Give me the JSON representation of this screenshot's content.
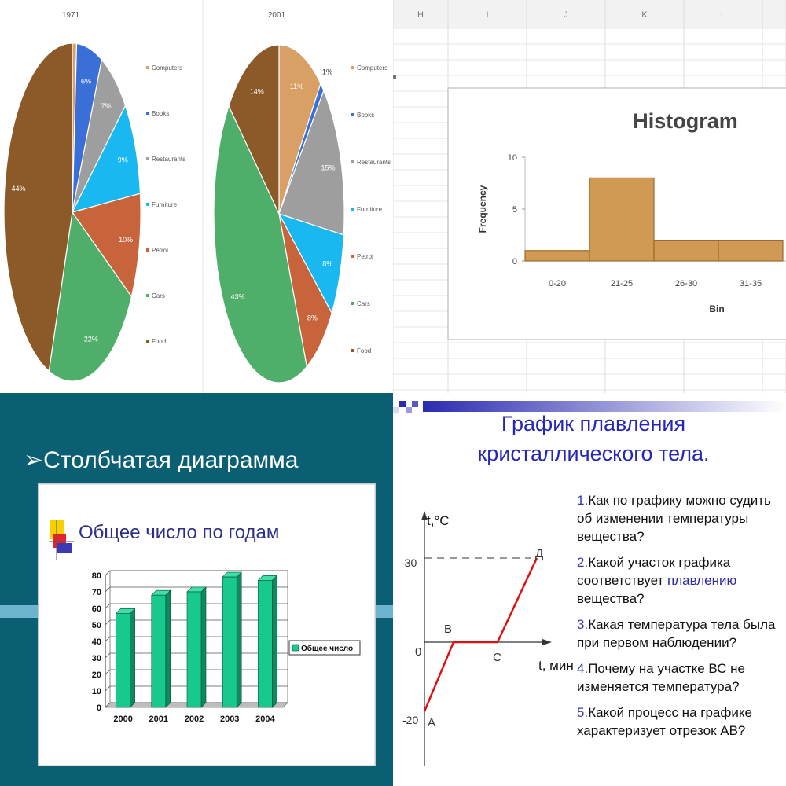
{
  "chart_data": [
    {
      "type": "pie",
      "title": "1971",
      "categories": [
        "Computers",
        "Books",
        "Restaurants",
        "Furniture",
        "Petrol",
        "Cars",
        "Food"
      ],
      "values": [
        1,
        6,
        7,
        9,
        10,
        22,
        44
      ],
      "labels": [
        "",
        "6%",
        "7%",
        "9%",
        "10%",
        "22%",
        "44%"
      ],
      "colors": [
        "#d9a066",
        "#3a6fd8",
        "#9e9e9e",
        "#19b8f0",
        "#c8643c",
        "#4fae6a",
        "#8c5a28"
      ]
    },
    {
      "type": "pie",
      "title": "2001",
      "categories": [
        "Computers",
        "Books",
        "Restaurants",
        "Furniture",
        "Petrol",
        "Cars",
        "Food"
      ],
      "values": [
        11,
        1,
        15,
        8,
        8,
        43,
        14
      ],
      "labels": [
        "11%",
        "1%",
        "15%",
        "8%",
        "8%",
        "43%",
        "14%"
      ],
      "colors": [
        "#d9a066",
        "#3a6fd8",
        "#9e9e9e",
        "#19b8f0",
        "#c8643c",
        "#4fae6a",
        "#8c5a28"
      ]
    },
    {
      "type": "bar",
      "title": "Histogram",
      "xlabel": "Bin",
      "ylabel": "Frequency",
      "categories": [
        "0-20",
        "21-25",
        "26-30",
        "31-35"
      ],
      "values": [
        1,
        8,
        2,
        2
      ],
      "yticks": [
        "0",
        "5",
        "10"
      ],
      "ylim": [
        0,
        10
      ]
    },
    {
      "type": "bar",
      "title": "Общее число по годам",
      "categories": [
        "2000",
        "2001",
        "2002",
        "2003",
        "2004"
      ],
      "values": [
        57,
        68,
        70,
        79,
        77
      ],
      "series": [
        {
          "name": "Общее число",
          "values": [
            57,
            68,
            70,
            79,
            77
          ]
        }
      ],
      "yticks": [
        "0",
        "10",
        "20",
        "30",
        "40",
        "50",
        "60",
        "70",
        "80"
      ],
      "ylim": [
        0,
        80
      ]
    },
    {
      "type": "line",
      "xlabel": "t, мин.",
      "ylabel": "t,°C",
      "points": [
        {
          "label": "A",
          "y": -20
        },
        {
          "label": "B",
          "y": 0
        },
        {
          "label": "C",
          "y": 0
        },
        {
          "label": "Д",
          "y": -30
        }
      ],
      "yticks": [
        "-30",
        "-20"
      ],
      "origin_label": "0"
    }
  ],
  "slide_bullet": "Столбчатая диаграмма",
  "melt_title": [
    "График плавления",
    "кристаллического тела."
  ],
  "questions": [
    {
      "num": "1.",
      "text": "Как по графику можно судить об изменении температуры вещества?"
    },
    {
      "num": "2.",
      "pre": "Какой участок графика соответствует ",
      "hl": "плавлению",
      "post": " вещества?"
    },
    {
      "num": "3.",
      "text": "Какая температура тела была при первом наблюдении?"
    },
    {
      "num": "4.",
      "text": "Почему на участке ВС не изменяется температура?"
    },
    {
      "num": "5.",
      "text": "Какой процесс на графике характеризует отрезок АВ?"
    }
  ],
  "spreadsheet_cols": [
    "H",
    "I",
    "J",
    "K",
    "L"
  ]
}
